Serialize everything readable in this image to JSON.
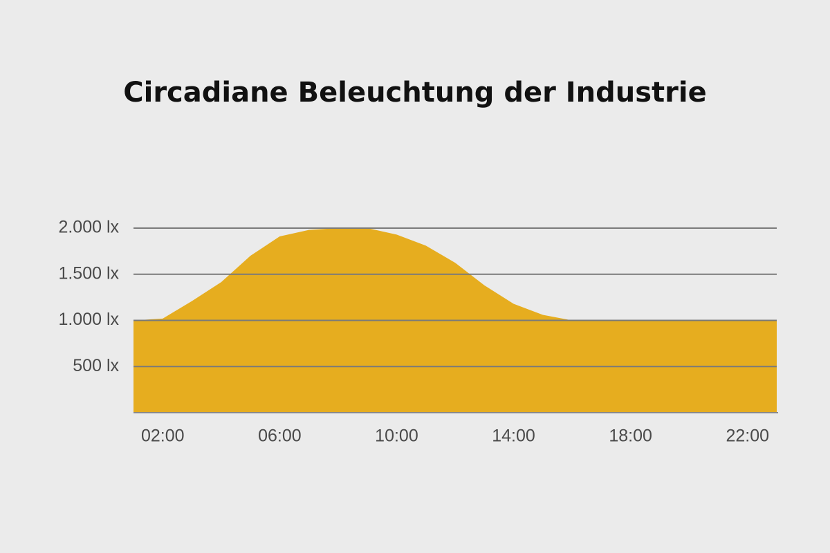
{
  "chart_data": {
    "type": "area",
    "title": "Circadiane Beleuchtung der Industrie",
    "x": [
      1,
      2,
      3,
      4,
      5,
      6,
      7,
      8,
      9,
      10,
      11,
      12,
      13,
      14,
      15,
      16,
      17,
      18,
      19,
      20,
      21,
      22,
      23
    ],
    "values": [
      1000,
      1020,
      1210,
      1415,
      1700,
      1910,
      1980,
      2000,
      2000,
      1930,
      1810,
      1625,
      1380,
      1180,
      1060,
      1000,
      1000,
      1000,
      1000,
      1000,
      1000,
      1000,
      1000
    ],
    "color": "#e6ad1f",
    "xlim": [
      1,
      23
    ],
    "xticks": [
      {
        "value": 2,
        "label": "02:00"
      },
      {
        "value": 6,
        "label": "06:00"
      },
      {
        "value": 10,
        "label": "10:00"
      },
      {
        "value": 14,
        "label": "14:00"
      },
      {
        "value": 18,
        "label": "18:00"
      },
      {
        "value": 22,
        "label": "22:00"
      }
    ],
    "ylim": [
      0,
      2000
    ],
    "yticks": [
      {
        "value": 500,
        "label": "500 lx"
      },
      {
        "value": 1000,
        "label": "1.000 lx"
      },
      {
        "value": 1500,
        "label": "1.500 lx"
      },
      {
        "value": 2000,
        "label": "2.000 lx"
      }
    ],
    "grid": true
  }
}
